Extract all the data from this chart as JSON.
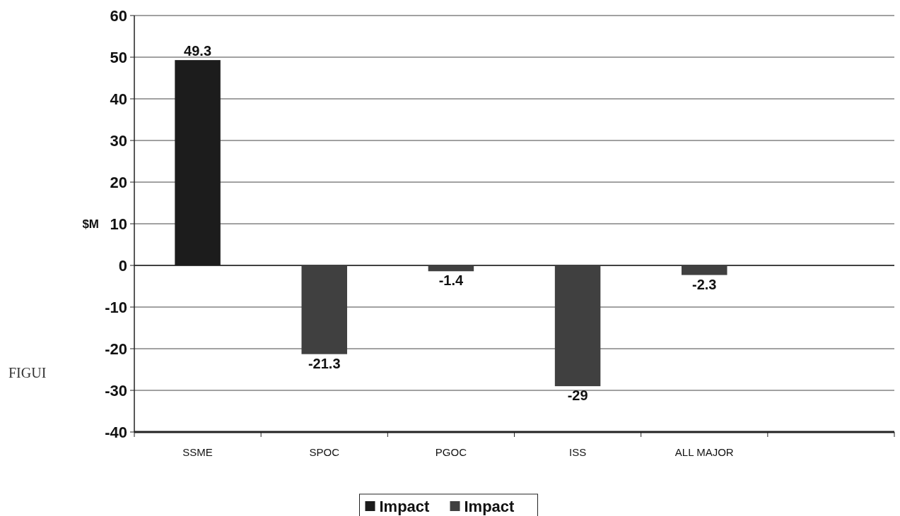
{
  "chart_data": {
    "type": "bar",
    "ylabel": "$M",
    "categories": [
      "SSME",
      "SPOC",
      "PGOC",
      "ISS",
      "ALL MAJOR",
      null
    ],
    "series": [
      {
        "name": "Impact",
        "color": "#1c1c1c",
        "values": [
          49.3,
          null,
          null,
          null,
          null,
          null
        ]
      },
      {
        "name": "Impact",
        "color": "#404040",
        "values": [
          null,
          -21.3,
          -1.4,
          -29,
          -2.3,
          null
        ]
      }
    ],
    "ylim": [
      -40,
      60
    ],
    "yticks": [
      -40,
      -30,
      -20,
      -10,
      0,
      10,
      20,
      30,
      40,
      50,
      60
    ],
    "grid": "y",
    "data_labels": true,
    "legend": "bottom",
    "annotations": [
      "FIGUI"
    ]
  }
}
